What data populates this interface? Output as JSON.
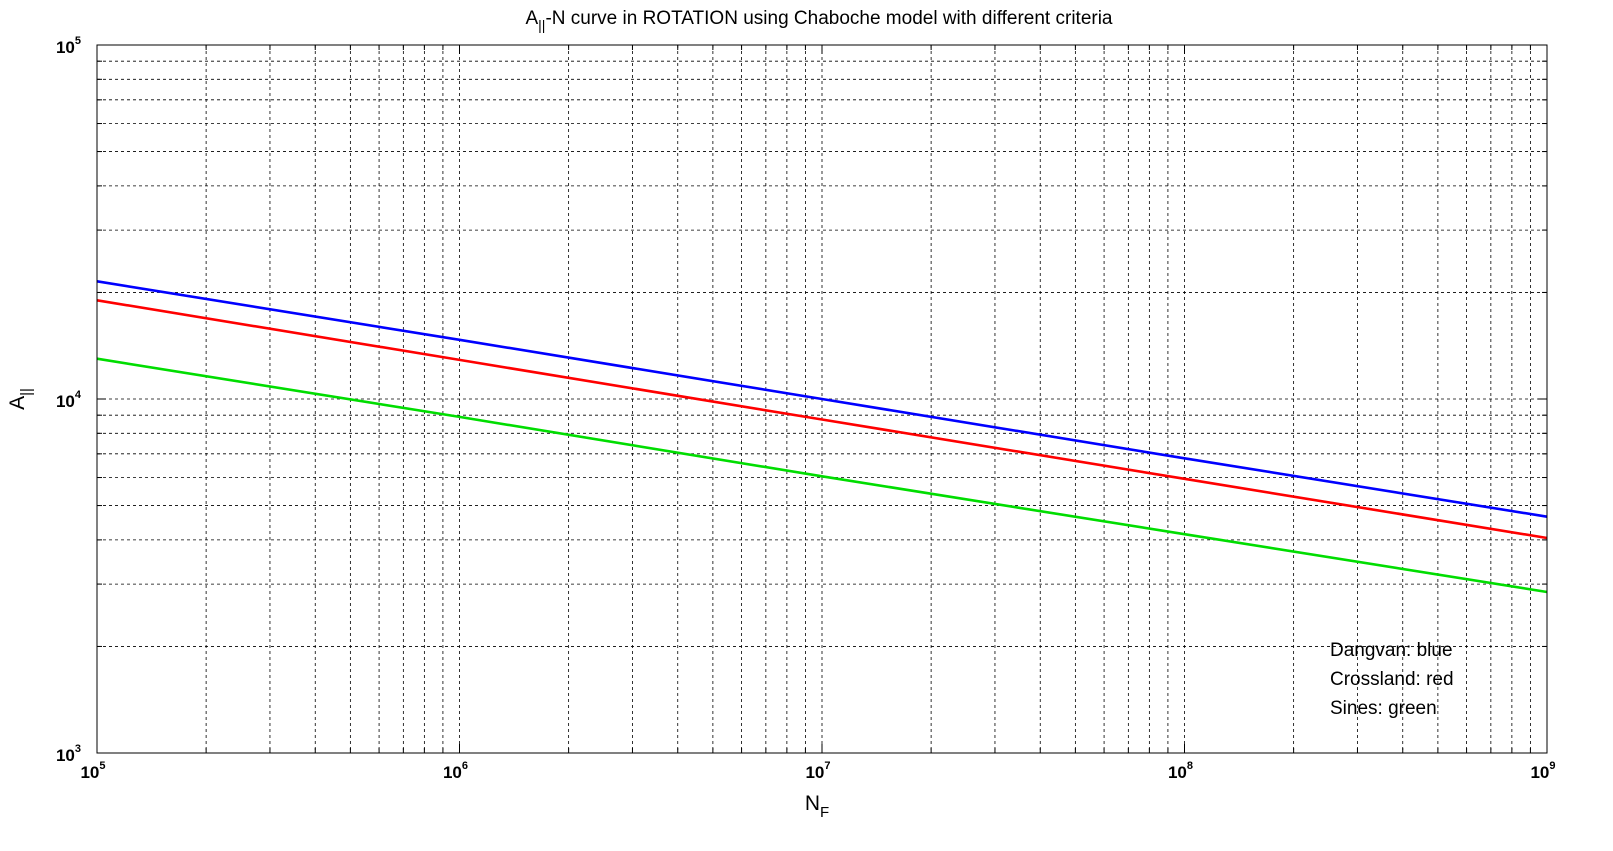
{
  "chart_data": {
    "type": "line",
    "title_main": "A",
    "title_sub": "||",
    "title_rest": "-N curve in ROTATION using Chaboche model with different criteria",
    "xlabel_main": "N",
    "xlabel_sub": "F",
    "ylabel_main": "A",
    "ylabel_sub": "||",
    "x_scale": "log",
    "y_scale": "log",
    "xlim": [
      100000,
      1000000000
    ],
    "ylim": [
      1000,
      100000
    ],
    "x_ticks": [
      {
        "base": "10",
        "exp": "5",
        "value": 100000
      },
      {
        "base": "10",
        "exp": "6",
        "value": 1000000
      },
      {
        "base": "10",
        "exp": "7",
        "value": 10000000
      },
      {
        "base": "10",
        "exp": "8",
        "value": 100000000
      },
      {
        "base": "10",
        "exp": "9",
        "value": 1000000000
      }
    ],
    "y_ticks": [
      {
        "base": "10",
        "exp": "3",
        "value": 1000
      },
      {
        "base": "10",
        "exp": "4",
        "value": 10000
      },
      {
        "base": "10",
        "exp": "5",
        "value": 100000
      }
    ],
    "grid": true,
    "series": [
      {
        "color": "#0000ff",
        "x": [
          100000,
          1000000,
          10000000,
          100000000,
          1000000000
        ],
        "y": [
          21500,
          14700,
          10000,
          6800,
          4650
        ]
      },
      {
        "color": "#ff0000",
        "x": [
          100000,
          1000000,
          10000000,
          100000000,
          1000000000
        ],
        "y": [
          19000,
          12900,
          8750,
          5950,
          4050
        ]
      },
      {
        "color": "#00dd00",
        "x": [
          100000,
          1000000,
          10000000,
          100000000,
          1000000000
        ],
        "y": [
          13000,
          8900,
          6050,
          4150,
          2850
        ]
      }
    ],
    "annotations": [
      "Dangvan: blue",
      "Crossland: red",
      "Sines: green"
    ]
  }
}
